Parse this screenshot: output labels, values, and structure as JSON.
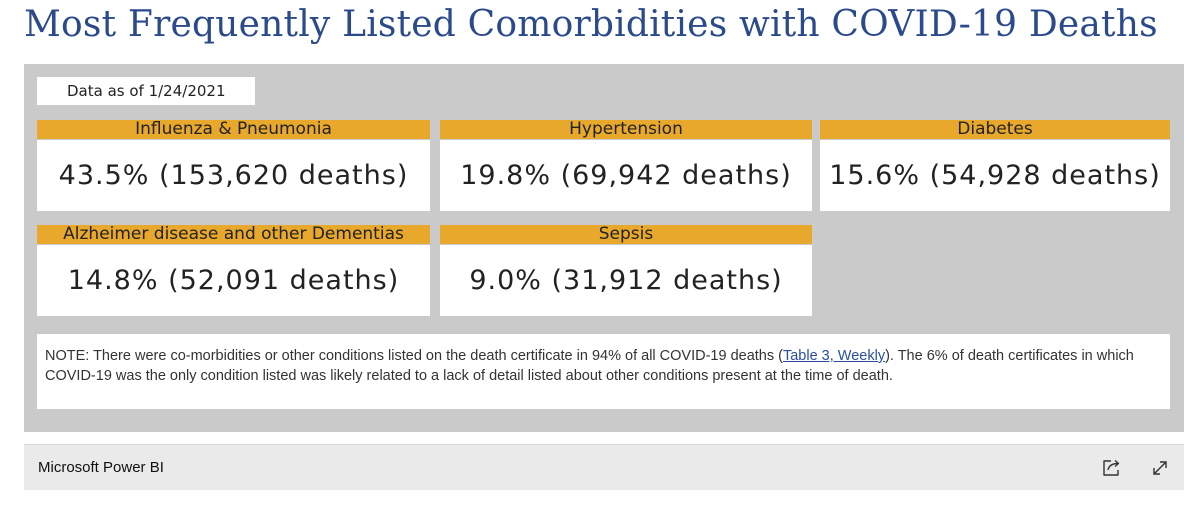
{
  "title": "Most Frequently Listed Comorbidities with COVID-19 Deaths",
  "date_label": "Data as of 1/24/2021",
  "cards": [
    {
      "label": "Influenza & Pneumonia",
      "value": "43.5% (153,620 deaths)"
    },
    {
      "label": "Hypertension",
      "value": "19.8% (69,942 deaths)"
    },
    {
      "label": "Diabetes",
      "value": "15.6% (54,928 deaths)"
    },
    {
      "label": "Alzheimer disease and other Dementias",
      "value": "14.8% (52,091 deaths)"
    },
    {
      "label": "Sepsis",
      "value": "9.0% (31,912 deaths)"
    }
  ],
  "note": {
    "prefix": "NOTE: There were co-morbidities or other conditions listed on the death certificate in 94% of all COVID-19 deaths (",
    "link": "Table 3, Weekly",
    "suffix": "). The 6% of death certificates in which COVID-19 was the only condition listed was likely related to a lack of detail listed about other conditions present at the time of death."
  },
  "footer": {
    "app_name": "Microsoft Power BI",
    "share_icon": "share-icon",
    "expand_icon": "expand-icon"
  },
  "colors": {
    "title": "#2b4a8b",
    "card_header": "#e8a82b",
    "canvas": "#cacaca",
    "link": "#2a4fa0"
  }
}
